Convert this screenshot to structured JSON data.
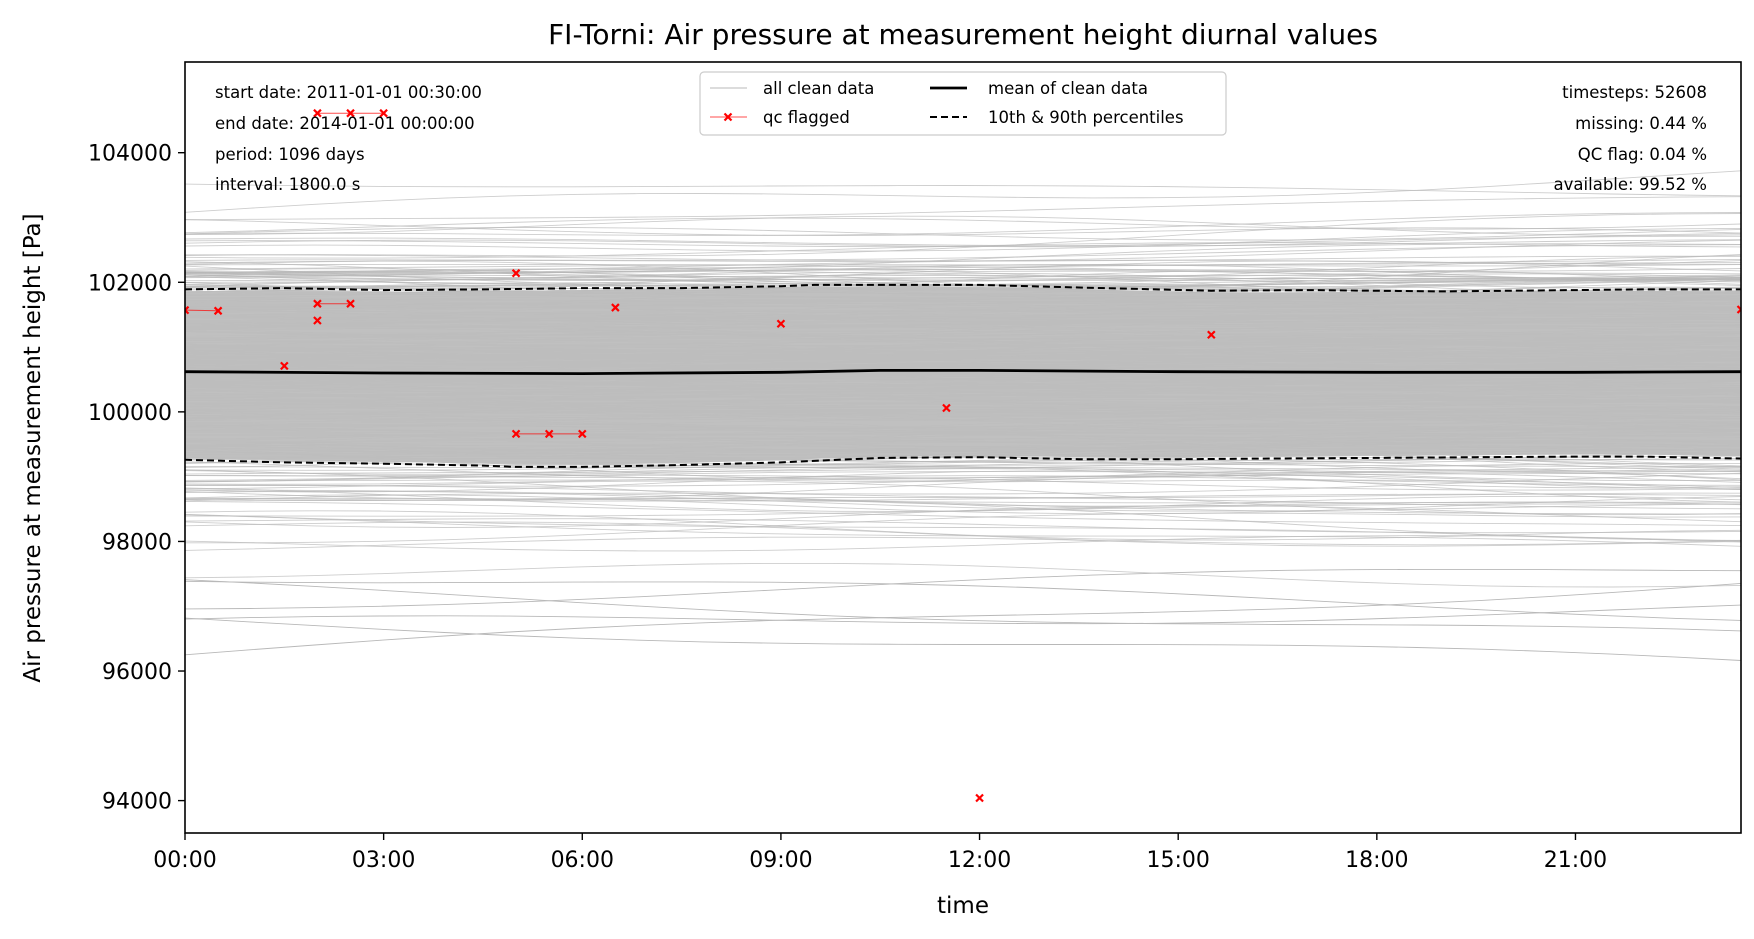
{
  "chart_data": {
    "type": "line",
    "title": "FI-Torni: Air pressure at measurement height diurnal values",
    "xlabel": "time",
    "ylabel": "Air pressure at measurement height [Pa]",
    "x_tick_labels": [
      "00:00",
      "03:00",
      "06:00",
      "09:00",
      "12:00",
      "15:00",
      "18:00",
      "21:00"
    ],
    "x_tick_hours": [
      0,
      3,
      6,
      9,
      12,
      15,
      18,
      21
    ],
    "y_ticks": [
      94000,
      96000,
      98000,
      100000,
      102000,
      104000
    ],
    "xlim_hours": [
      0,
      23.5
    ],
    "ylim": [
      93500,
      105400
    ],
    "grid": false,
    "legend_position": "upper center",
    "legend": {
      "all_clean": "all clean data",
      "qc": "qc flagged",
      "mean": "mean of clean data",
      "pct": "10th & 90th percentiles"
    },
    "info_left": {
      "start": "start date: 2011-01-01 00:30:00",
      "end": "end date: 2014-01-01 00:00:00",
      "period": "period: 1096 days",
      "interval": "interval: 1800.0 s"
    },
    "info_right": {
      "timesteps": "timesteps: 52608",
      "missing": "missing: 0.44 %",
      "qcflag": "QC flag: 0.04 %",
      "available": "available: 99.52 %"
    },
    "series": [
      {
        "name": "mean of clean data",
        "x_hours": [
          0,
          3,
          6,
          9,
          10.5,
          12,
          15,
          18,
          21,
          23.5
        ],
        "y": [
          100620,
          100600,
          100590,
          100610,
          100640,
          100640,
          100620,
          100610,
          100610,
          100620
        ]
      },
      {
        "name": "10th & 90th percentiles (90th)",
        "x_hours": [
          0,
          1.5,
          3,
          4.5,
          6,
          7.5,
          9,
          9.5,
          10.5,
          12,
          13.5,
          15.5,
          17,
          19,
          21,
          22,
          23.5
        ],
        "y": [
          101890,
          101910,
          101880,
          101890,
          101910,
          101910,
          101940,
          101960,
          101960,
          101960,
          101920,
          101870,
          101880,
          101860,
          101880,
          101890,
          101890
        ]
      },
      {
        "name": "10th & 90th percentiles (10th)",
        "x_hours": [
          0,
          1.5,
          3,
          4.5,
          5,
          6,
          7.5,
          9,
          10.5,
          12,
          13.5,
          15,
          16.5,
          18,
          19.5,
          21,
          22,
          23.5
        ],
        "y": [
          99260,
          99220,
          99200,
          99170,
          99150,
          99150,
          99180,
          99220,
          99290,
          99300,
          99270,
          99270,
          99280,
          99290,
          99300,
          99310,
          99310,
          99280
        ]
      }
    ],
    "qc_flagged": {
      "points": [
        {
          "x": 0,
          "y": 101570
        },
        {
          "x": 0.5,
          "y": 101560
        },
        {
          "x": 1.5,
          "y": 100710
        },
        {
          "x": 2,
          "y": 104610
        },
        {
          "x": 2.5,
          "y": 104610
        },
        {
          "x": 3,
          "y": 104610
        },
        {
          "x": 2,
          "y": 101670
        },
        {
          "x": 2.5,
          "y": 101670
        },
        {
          "x": 2,
          "y": 101410
        },
        {
          "x": 5,
          "y": 102140
        },
        {
          "x": 5,
          "y": 99660
        },
        {
          "x": 5.5,
          "y": 99660
        },
        {
          "x": 6,
          "y": 99660
        },
        {
          "x": 6.5,
          "y": 101610
        },
        {
          "x": 9,
          "y": 101360
        },
        {
          "x": 11.5,
          "y": 100060
        },
        {
          "x": 12,
          "y": 94040
        },
        {
          "x": 15.5,
          "y": 101190
        },
        {
          "x": 23.5,
          "y": 101580
        }
      ],
      "segments": [
        [
          [
            0,
            101570
          ],
          [
            0.5,
            101560
          ]
        ],
        [
          [
            2,
            104610
          ],
          [
            2.5,
            104610
          ],
          [
            3,
            104610
          ]
        ],
        [
          [
            2,
            101670
          ],
          [
            2.5,
            101670
          ]
        ],
        [
          [
            5,
            99660
          ],
          [
            5.5,
            99660
          ],
          [
            6,
            99660
          ]
        ]
      ]
    },
    "colors": {
      "clean": "#b8b8b8",
      "band": "#bdbdbd",
      "qc": "#ff0000",
      "mean": "#000000"
    }
  }
}
